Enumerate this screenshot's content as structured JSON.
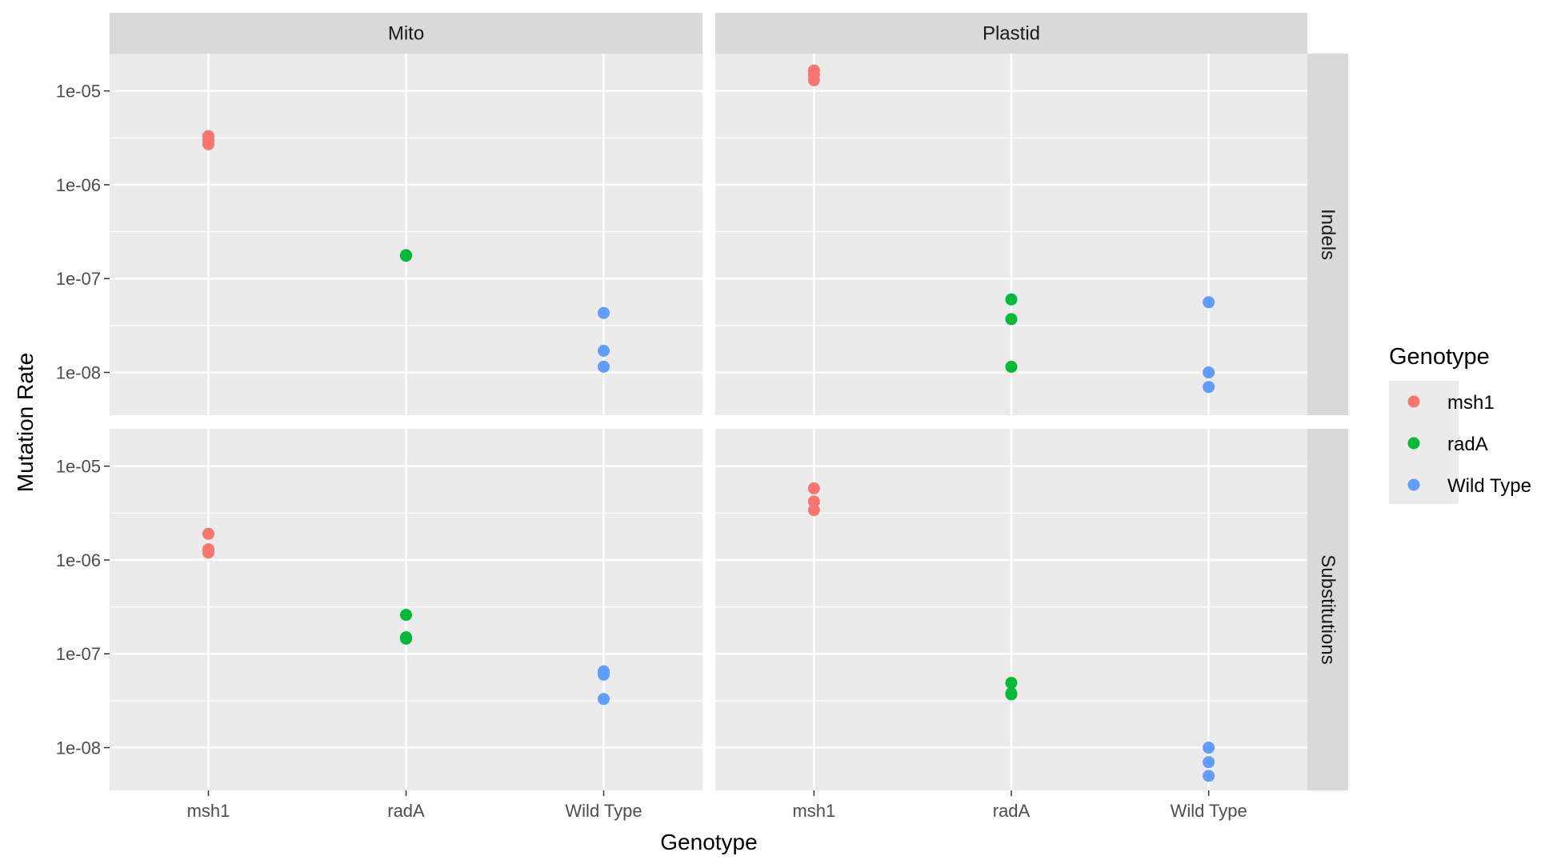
{
  "chart_data": {
    "type": "scatter",
    "xlabel": "Genotype",
    "ylabel": "Mutation Rate",
    "y_scale": "log10",
    "ylim": [
      3.5e-09,
      2.5e-05
    ],
    "categories": [
      "msh1",
      "radA",
      "Wild Type"
    ],
    "y_ticks": [
      1e-08,
      1e-07,
      1e-06,
      1e-05
    ],
    "y_tick_labels": [
      "1e-08",
      "1e-07",
      "1e-06",
      "1e-05"
    ],
    "facet_columns": [
      "Mito",
      "Plastid"
    ],
    "facet_rows": [
      "Indels",
      "Substitutions"
    ],
    "grid": true,
    "legend": {
      "title": "Genotype",
      "position": "right",
      "entries": [
        {
          "label": "msh1",
          "color": "#F8766D"
        },
        {
          "label": "radA",
          "color": "#00BA38"
        },
        {
          "label": "Wild Type",
          "color": "#619CFF"
        }
      ]
    },
    "panels": [
      {
        "column": "Mito",
        "row": "Indels",
        "series": [
          {
            "name": "msh1",
            "values": [
              3.3e-06,
              3e-06,
              2.7e-06
            ]
          },
          {
            "name": "radA",
            "values": [
              1.75e-07,
              1.78e-07
            ]
          },
          {
            "name": "Wild Type",
            "values": [
              4.3e-08,
              1.7e-08,
              1.15e-08
            ]
          }
        ]
      },
      {
        "column": "Plastid",
        "row": "Indels",
        "series": [
          {
            "name": "msh1",
            "values": [
              1.65e-05,
              1.5e-05,
              1.3e-05
            ]
          },
          {
            "name": "radA",
            "values": [
              6e-08,
              3.7e-08,
              1.15e-08
            ]
          },
          {
            "name": "Wild Type",
            "values": [
              5.6e-08,
              1e-08,
              7e-09
            ]
          }
        ]
      },
      {
        "column": "Mito",
        "row": "Substitutions",
        "series": [
          {
            "name": "msh1",
            "values": [
              1.9e-06,
              1.3e-06,
              1.2e-06
            ]
          },
          {
            "name": "radA",
            "values": [
              2.6e-07,
              1.5e-07,
              1.45e-07
            ]
          },
          {
            "name": "Wild Type",
            "values": [
              6.5e-08,
              6e-08,
              3.3e-08
            ]
          }
        ]
      },
      {
        "column": "Plastid",
        "row": "Substitutions",
        "series": [
          {
            "name": "msh1",
            "values": [
              5.8e-06,
              4.2e-06,
              3.4e-06
            ]
          },
          {
            "name": "radA",
            "values": [
              4.9e-08,
              3.8e-08,
              3.7e-08
            ]
          },
          {
            "name": "Wild Type",
            "values": [
              1e-08,
              7e-09,
              5e-09
            ]
          }
        ]
      }
    ]
  }
}
